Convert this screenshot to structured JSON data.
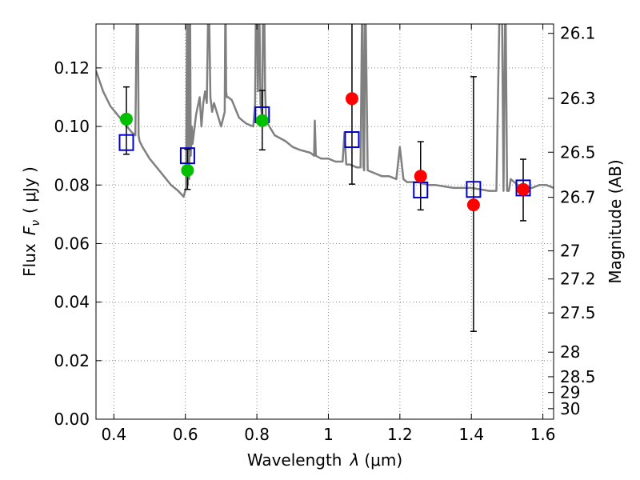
{
  "chart_data": {
    "type": "scatter",
    "xlabel_prefix": "Wavelength",
    "xlabel_symbol": "λ",
    "xlabel_unit": "(μm)",
    "ylabel_prefix": "Flux",
    "ylabel_symbol": "F",
    "ylabel_subscript": "ν",
    "ylabel_unit": "( μJy )",
    "y2label": "Magnitude (AB)",
    "xlim": [
      0.35,
      1.63
    ],
    "ylim": [
      0.0,
      0.135
    ],
    "x_ticks": [
      0.4,
      0.6,
      0.8,
      1.0,
      1.2,
      1.4,
      1.6
    ],
    "x_tick_labels": [
      "0.4",
      "0.6",
      "0.8",
      "1",
      "1.2",
      "1.4",
      "1.6"
    ],
    "y_ticks": [
      0.0,
      0.02,
      0.04,
      0.06,
      0.08,
      0.1,
      0.12
    ],
    "y_tick_labels": [
      "0.00",
      "0.02",
      "0.04",
      "0.06",
      "0.08",
      "0.10",
      "0.12"
    ],
    "y2_ticks": [
      {
        "label": "26.1",
        "flux": 0.1318
      },
      {
        "label": "26.3",
        "flux": 0.1096
      },
      {
        "label": "26.5",
        "flux": 0.0912
      },
      {
        "label": "26.7",
        "flux": 0.0758
      },
      {
        "label": "27",
        "flux": 0.0575
      },
      {
        "label": "27.2",
        "flux": 0.0479
      },
      {
        "label": "27.5",
        "flux": 0.0363
      },
      {
        "label": "28",
        "flux": 0.0229
      },
      {
        "label": "28.5",
        "flux": 0.0145
      },
      {
        "label": "29",
        "flux": 0.0091
      },
      {
        "label": "30",
        "flux": 0.0036
      }
    ],
    "grid": true,
    "colors": {
      "model_line": "#808080",
      "green_points": "#00c000",
      "red_points": "#ff0000",
      "model_squares": "#0000cc",
      "errorbar": "#000000",
      "grid": "#888888"
    },
    "model_spectrum": {
      "x": [
        0.35,
        0.37,
        0.39,
        0.41,
        0.43,
        0.45,
        0.46,
        0.465,
        0.467,
        0.469,
        0.472,
        0.48,
        0.5,
        0.52,
        0.54,
        0.56,
        0.58,
        0.595,
        0.602,
        0.605,
        0.607,
        0.609,
        0.611,
        0.613,
        0.615,
        0.618,
        0.62,
        0.63,
        0.64,
        0.645,
        0.65,
        0.655,
        0.66,
        0.665,
        0.67,
        0.675,
        0.68,
        0.7,
        0.71,
        0.712,
        0.714,
        0.716,
        0.72,
        0.73,
        0.75,
        0.76,
        0.77,
        0.79,
        0.795,
        0.798,
        0.8,
        0.803,
        0.806,
        0.81,
        0.815,
        0.818,
        0.82,
        0.823,
        0.826,
        0.83,
        0.85,
        0.88,
        0.9,
        0.92,
        0.95,
        0.96,
        0.962,
        0.965,
        0.98,
        1.0,
        1.02,
        1.04,
        1.045,
        1.05,
        1.06,
        1.08,
        1.09,
        1.095,
        1.098,
        1.1,
        1.103,
        1.11,
        1.13,
        1.15,
        1.17,
        1.19,
        1.2,
        1.21,
        1.22,
        1.25,
        1.28,
        1.3,
        1.35,
        1.4,
        1.45,
        1.47,
        1.48,
        1.485,
        1.49,
        1.495,
        1.5,
        1.505,
        1.51,
        1.53,
        1.55,
        1.57,
        1.59,
        1.61,
        1.63
      ],
      "y": [
        0.119,
        0.112,
        0.107,
        0.104,
        0.101,
        0.098,
        0.097,
        0.15,
        0.15,
        0.097,
        0.095,
        0.093,
        0.089,
        0.086,
        0.083,
        0.08,
        0.078,
        0.076,
        0.079,
        0.15,
        0.08,
        0.15,
        0.082,
        0.15,
        0.09,
        0.1,
        0.094,
        0.104,
        0.11,
        0.1,
        0.108,
        0.112,
        0.108,
        0.15,
        0.11,
        0.105,
        0.108,
        0.1,
        0.105,
        0.15,
        0.112,
        0.11,
        0.11,
        0.109,
        0.103,
        0.102,
        0.101,
        0.1,
        0.108,
        0.15,
        0.15,
        0.112,
        0.15,
        0.108,
        0.103,
        0.15,
        0.15,
        0.112,
        0.102,
        0.101,
        0.097,
        0.095,
        0.093,
        0.092,
        0.091,
        0.09,
        0.102,
        0.09,
        0.089,
        0.089,
        0.088,
        0.088,
        0.098,
        0.087,
        0.087,
        0.086,
        0.086,
        0.15,
        0.086,
        0.085,
        0.15,
        0.085,
        0.084,
        0.083,
        0.083,
        0.082,
        0.093,
        0.082,
        0.081,
        0.081,
        0.08,
        0.08,
        0.079,
        0.079,
        0.078,
        0.078,
        0.15,
        0.15,
        0.078,
        0.15,
        0.078,
        0.078,
        0.082,
        0.08,
        0.079,
        0.079,
        0.08,
        0.08,
        0.079
      ]
    },
    "green_points": [
      {
        "x": 0.435,
        "y": 0.1025,
        "yerr_low": 0.0905,
        "yerr_high": 0.1135
      },
      {
        "x": 0.606,
        "y": 0.085,
        "yerr_low": 0.0785,
        "yerr_high": 0.0922
      },
      {
        "x": 0.815,
        "y": 0.102,
        "yerr_low": 0.092,
        "yerr_high": 0.1123
      }
    ],
    "red_points": [
      {
        "x": 1.066,
        "y": 0.1095,
        "yerr_low": 0.0803,
        "yerr_high": 0.14
      },
      {
        "x": 1.258,
        "y": 0.083,
        "yerr_low": 0.0715,
        "yerr_high": 0.0948
      },
      {
        "x": 1.406,
        "y": 0.0732,
        "yerr_low": 0.03,
        "yerr_high": 0.117
      },
      {
        "x": 1.545,
        "y": 0.0785,
        "yerr_low": 0.0678,
        "yerr_high": 0.0888
      }
    ],
    "model_squares": [
      {
        "x": 0.435,
        "y": 0.0945
      },
      {
        "x": 0.606,
        "y": 0.09
      },
      {
        "x": 0.815,
        "y": 0.104
      },
      {
        "x": 1.066,
        "y": 0.0955
      },
      {
        "x": 1.258,
        "y": 0.0783
      },
      {
        "x": 1.406,
        "y": 0.0785
      },
      {
        "x": 1.545,
        "y": 0.079
      }
    ]
  }
}
